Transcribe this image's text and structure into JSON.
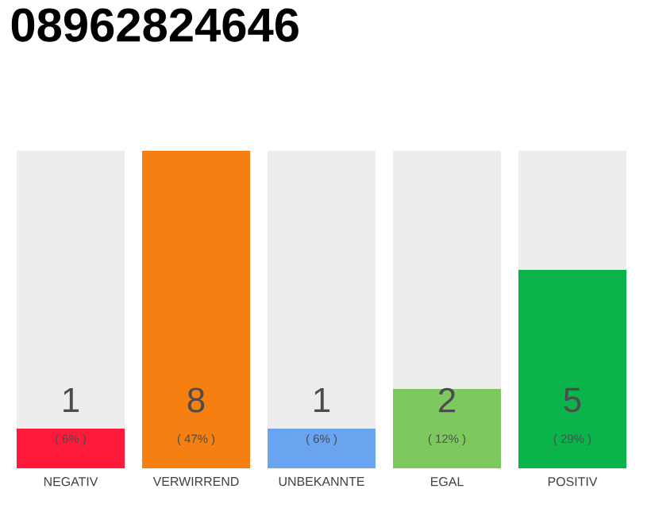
{
  "chart_data": {
    "type": "bar",
    "title": "08962824646",
    "categories": [
      "NEGATIV",
      "VERWIRREND",
      "UNBEKANNTE",
      "EGAL",
      "POSITIV"
    ],
    "values": [
      1,
      8,
      1,
      2,
      5
    ],
    "colors": [
      "#ff1a3c",
      "#f57f10",
      "#6aa4f0",
      "#7dc95e",
      "#0bb44a"
    ],
    "ylim": [
      0,
      8
    ],
    "tick_labels": "x",
    "data_labels": true,
    "annotations": [
      "( 6% )",
      "( 47% )",
      "( 6% )",
      "( 12% )",
      "( 29% )"
    ]
  }
}
